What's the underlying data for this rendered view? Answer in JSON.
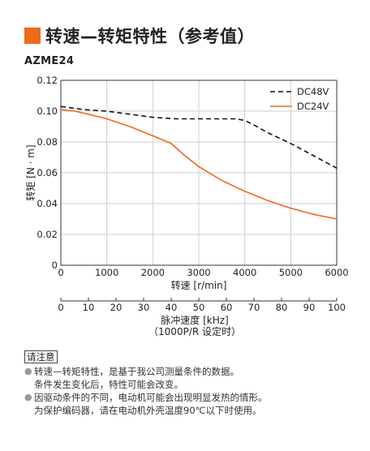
{
  "header": {
    "title": "转速—转矩特性（参考值）",
    "accent_color": "#ee6a1c"
  },
  "model": "AZME24",
  "chart_data": {
    "type": "line",
    "xlabel": "转速 [r/min]",
    "ylabel": "转矩 [N · m]",
    "xlim": [
      0,
      6000
    ],
    "ylim": [
      0,
      0.12
    ],
    "x_ticks": [
      "0",
      "1000",
      "2000",
      "3000",
      "4000",
      "5000",
      "6000"
    ],
    "y_ticks": [
      "0",
      "0.02",
      "0.04",
      "0.06",
      "0.08",
      "0.10",
      "0.12"
    ],
    "grid": true,
    "legend_position": "top-right",
    "series": [
      {
        "name": "DC48V",
        "style": "dashed",
        "color": "#111111",
        "x": [
          0,
          500,
          1000,
          1500,
          2000,
          2500,
          3000,
          3500,
          3800,
          4000,
          4200,
          4500,
          5000,
          5500,
          6000
        ],
        "y": [
          0.103,
          0.101,
          0.1,
          0.098,
          0.096,
          0.095,
          0.095,
          0.095,
          0.095,
          0.094,
          0.091,
          0.086,
          0.079,
          0.071,
          0.063
        ]
      },
      {
        "name": "DC24V",
        "style": "solid",
        "color": "#ee6a1c",
        "x": [
          0,
          300,
          600,
          1000,
          1500,
          2000,
          2400,
          2700,
          3000,
          3500,
          4000,
          4500,
          5000,
          5500,
          6000
        ],
        "y": [
          0.101,
          0.1,
          0.098,
          0.095,
          0.09,
          0.084,
          0.079,
          0.071,
          0.064,
          0.055,
          0.048,
          0.042,
          0.037,
          0.033,
          0.03
        ]
      }
    ],
    "secondary_axis": {
      "label_line1": "脉冲速度 [kHz]",
      "label_line2": "（1000P/R 设定时）",
      "xlim": [
        0,
        100
      ],
      "ticks": [
        "0",
        "10",
        "20",
        "30",
        "40",
        "50",
        "60",
        "70",
        "80",
        "90",
        "100"
      ]
    }
  },
  "notes": {
    "heading": "请注意",
    "items": [
      [
        "转速—转矩特性，是基于我公司测量条件的数据。",
        "条件发生变化后，特性可能会改变。"
      ],
      [
        "因驱动条件的不同，电动机可能会出现明显发热的情形。",
        "为保护编码器，请在电动机外壳温度90℃以下时使用。"
      ]
    ]
  }
}
